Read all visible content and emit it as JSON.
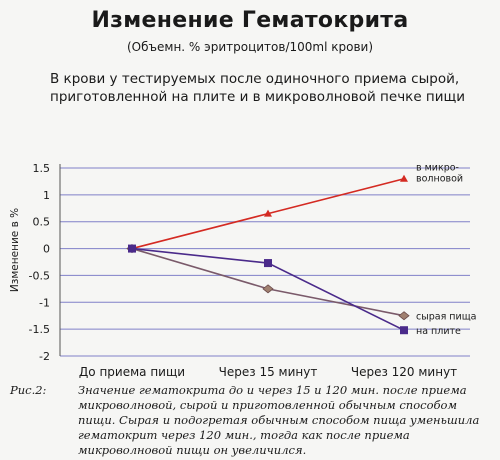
{
  "header": {
    "title": "Изменение Гематокрита",
    "subtitle": "(Объемн. % эритроцитов/100ml крови)",
    "description": "В крови у тестируемых после одиночного приема сырой, приготовленной на плите и в микроволновой печке пищи"
  },
  "caption": {
    "label": "Рис.2:",
    "text": "Значение гематокрита до и через 15 и 120 мин. после приема микроволновой, сырой и приготовленной обычным способом пищи. Сырая и подогретая обычным способом пища уменьшила гематокрит через 120 мин., тогда как после приема микроволновой пищи он увеличился."
  },
  "chart_data": {
    "type": "line",
    "ylabel": "Изменение в %",
    "categories": [
      "До приема пищи",
      "Через 15 минут",
      "Через 120 минут"
    ],
    "yticks": [
      "1.5",
      "1",
      "0.5",
      "0",
      "-0.5",
      "-1",
      "-1.5",
      "-2"
    ],
    "ylim": [
      -2,
      1.5
    ],
    "grid": true,
    "series": [
      {
        "name": "в микро-\nволновой",
        "values": [
          0,
          0.65,
          1.3
        ],
        "color": "#d42a22",
        "marker": "triangle"
      },
      {
        "name": "сырая пища",
        "values": [
          0,
          -0.75,
          -1.25
        ],
        "color": "#7a5a6a",
        "marker": "diamond"
      },
      {
        "name": "на плите",
        "values": [
          0,
          -0.27,
          -1.52
        ],
        "color": "#4a2a8a",
        "marker": "square"
      }
    ]
  }
}
